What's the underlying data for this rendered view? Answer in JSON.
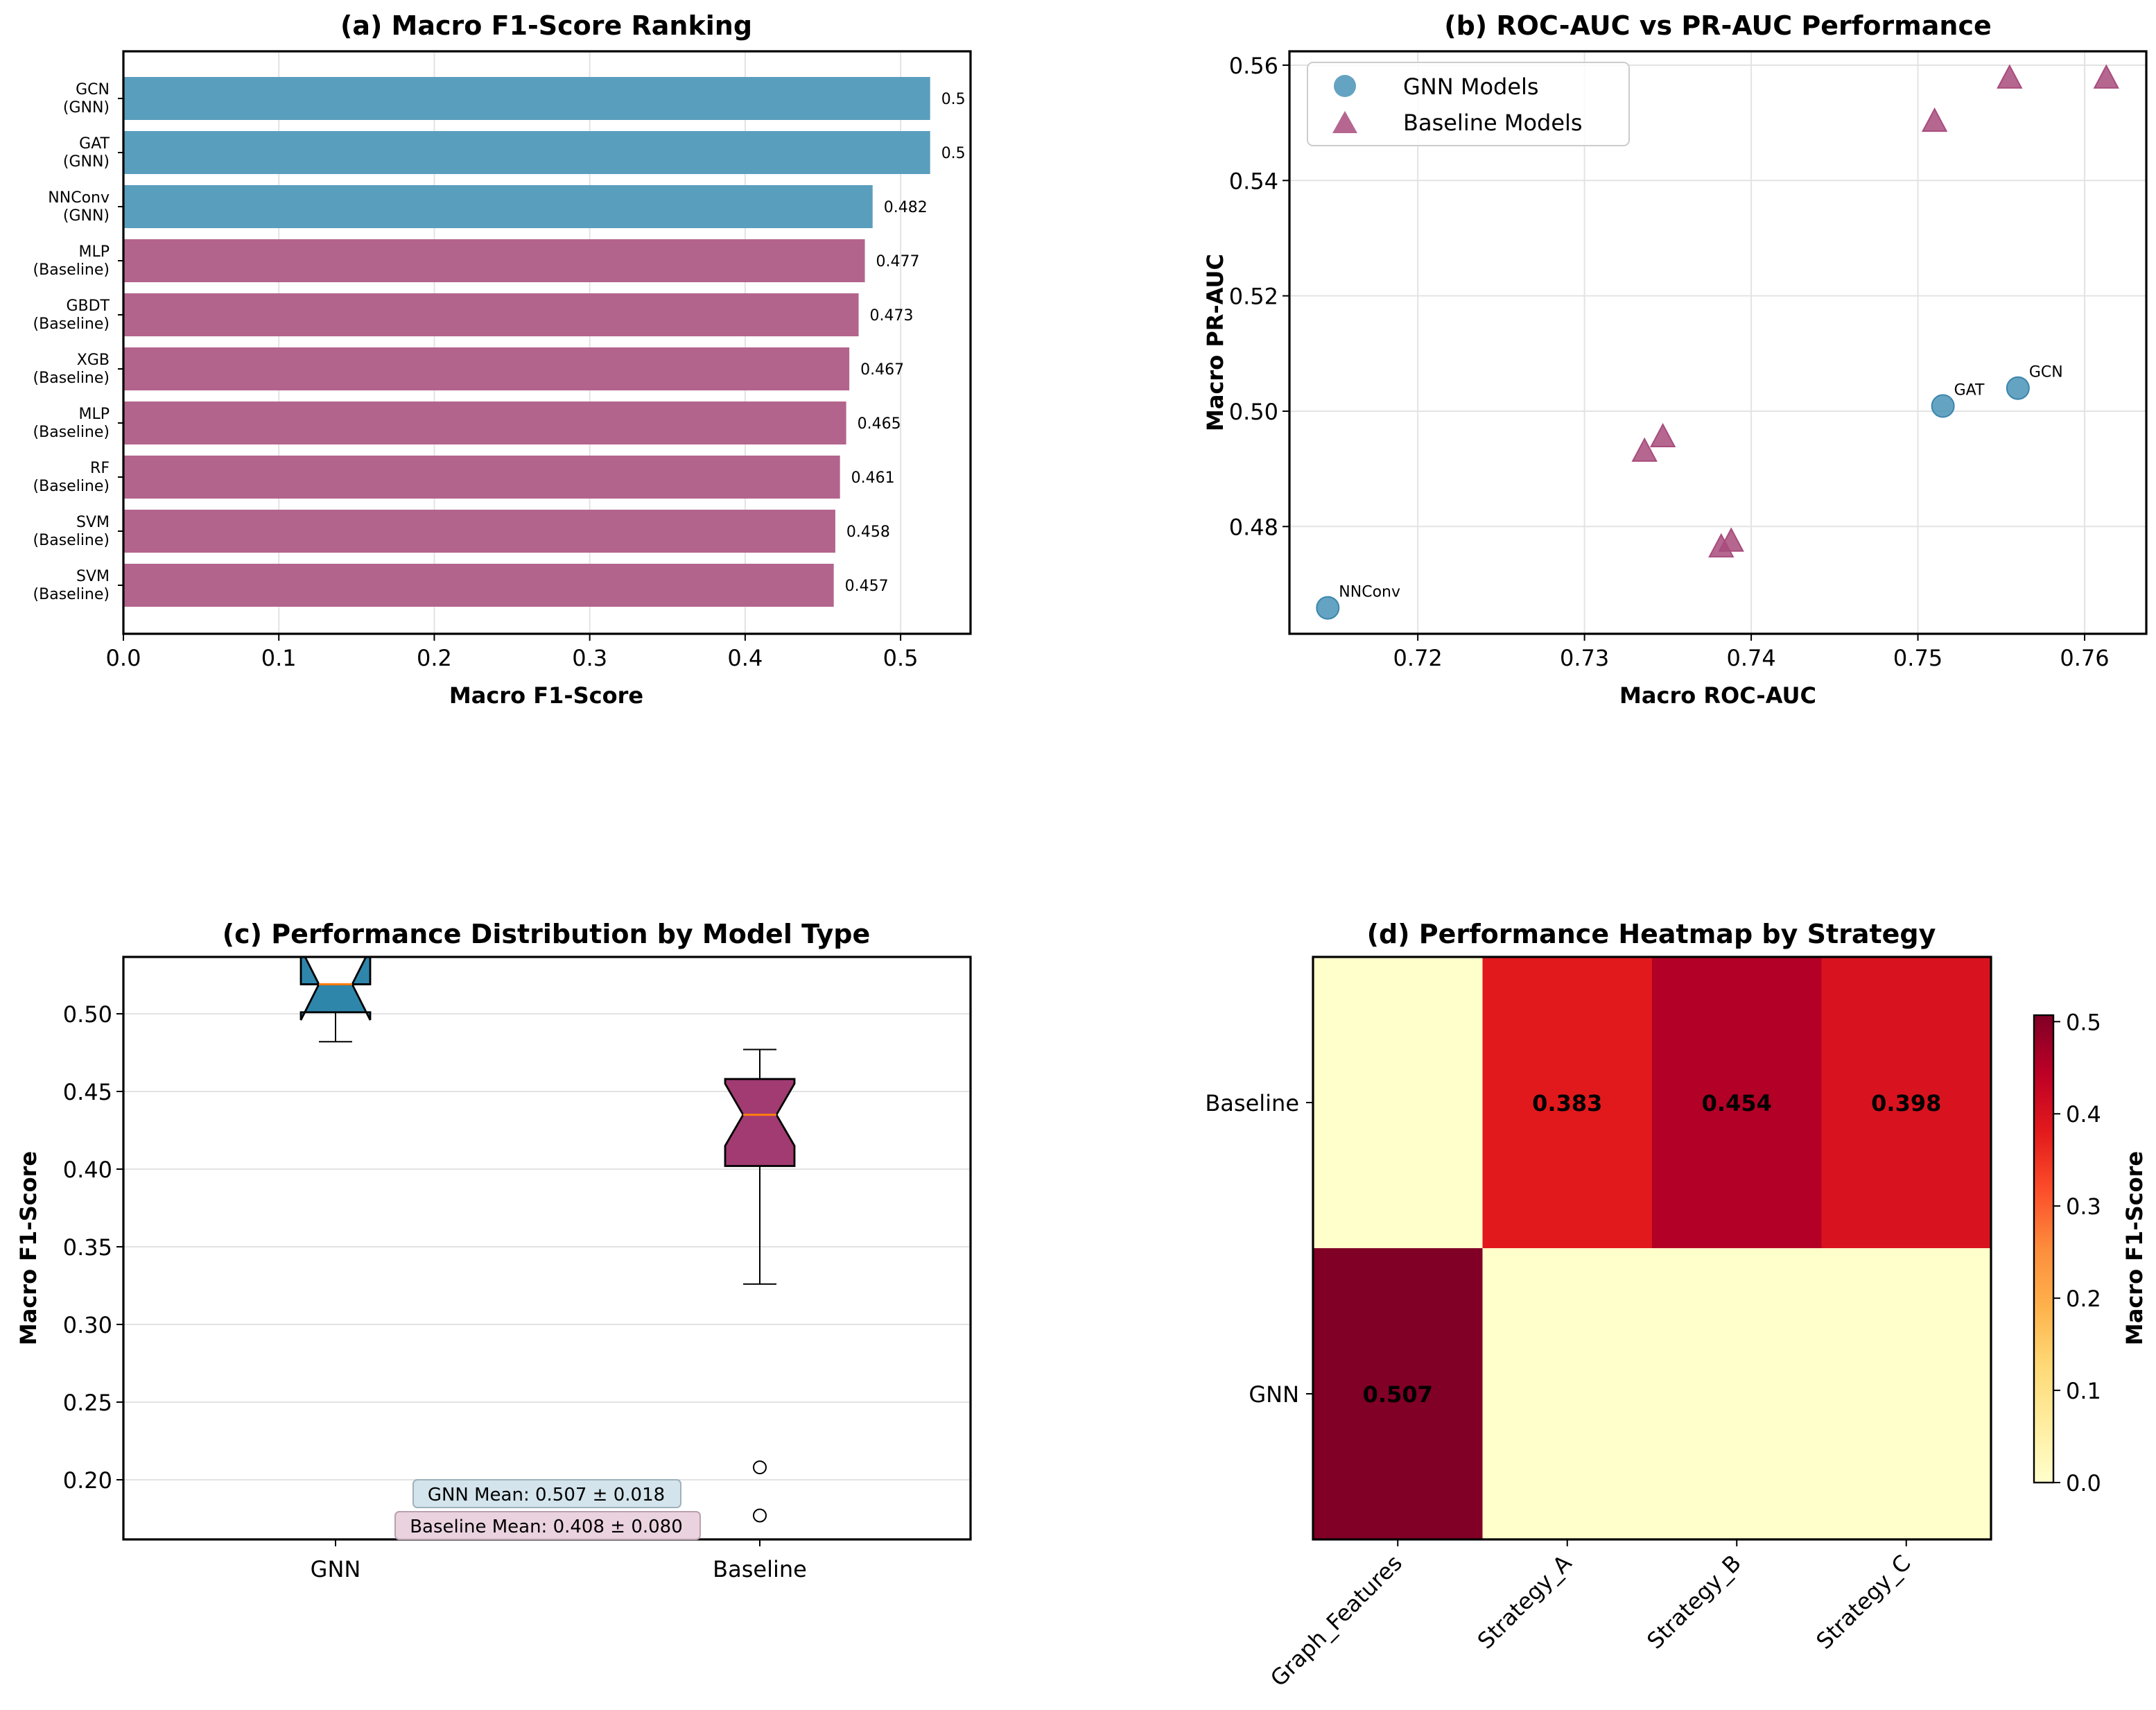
{
  "chart_data": [
    {
      "type": "bar",
      "orientation": "horizontal",
      "title": "(a) Macro F1-Score Ranking",
      "xlabel": "Macro F1-Score",
      "xlim": [
        0,
        0.545
      ],
      "xticks": [
        "0.0",
        "0.1",
        "0.2",
        "0.3",
        "0.4",
        "0.5"
      ],
      "grid": true,
      "bars": [
        {
          "name": "GCN",
          "group": "(GNN)",
          "value": 0.519,
          "label": "0.5"
        },
        {
          "name": "GAT",
          "group": "(GNN)",
          "value": 0.519,
          "label": "0.5"
        },
        {
          "name": "NNConv",
          "group": "(GNN)",
          "value": 0.482,
          "label": "0.482"
        },
        {
          "name": "MLP",
          "group": "(Baseline)",
          "value": 0.477,
          "label": "0.477"
        },
        {
          "name": "GBDT",
          "group": "(Baseline)",
          "value": 0.473,
          "label": "0.473"
        },
        {
          "name": "XGB",
          "group": "(Baseline)",
          "value": 0.467,
          "label": "0.467"
        },
        {
          "name": "MLP",
          "group": "(Baseline)",
          "value": 0.465,
          "label": "0.465"
        },
        {
          "name": "RF",
          "group": "(Baseline)",
          "value": 0.461,
          "label": "0.461"
        },
        {
          "name": "SVM",
          "group": "(Baseline)",
          "value": 0.458,
          "label": "0.458"
        },
        {
          "name": "SVM",
          "group": "(Baseline)",
          "value": 0.457,
          "label": "0.457"
        }
      ],
      "colors": {
        "(GNN)": "#5a9ebd",
        "(Baseline)": "#b3648c"
      }
    },
    {
      "type": "scatter",
      "title": "(b) ROC-AUC vs PR-AUC Performance",
      "xlabel": "Macro ROC-AUC",
      "ylabel": "Macro PR-AUC",
      "xlim": [
        0.7123,
        0.7637
      ],
      "ylim": [
        0.4614,
        0.5624
      ],
      "xticks": [
        0.72,
        0.73,
        0.74,
        0.75,
        0.76
      ],
      "yticks": [
        0.48,
        0.5,
        0.52,
        0.54,
        0.56
      ],
      "legend_position": "top-left",
      "grid": true,
      "series": [
        {
          "name": "GNN Models",
          "marker": "circle",
          "color": "#4a93b7",
          "points": [
            {
              "x": 0.7146,
              "y": 0.4659,
              "label": "NNConv"
            },
            {
              "x": 0.7515,
              "y": 0.5009,
              "label": "GAT"
            },
            {
              "x": 0.756,
              "y": 0.504,
              "label": "GCN"
            }
          ]
        },
        {
          "name": "Baseline Models",
          "marker": "triangle",
          "color": "#a84c7c",
          "points": [
            {
              "x": 0.7555,
              "y": 0.5575
            },
            {
              "x": 0.7613,
              "y": 0.5575
            },
            {
              "x": 0.751,
              "y": 0.55
            },
            {
              "x": 0.7336,
              "y": 0.4928
            },
            {
              "x": 0.7347,
              "y": 0.4953
            },
            {
              "x": 0.7382,
              "y": 0.4762
            },
            {
              "x": 0.7388,
              "y": 0.4772
            }
          ]
        }
      ]
    },
    {
      "type": "box",
      "title": "(c) Performance Distribution by Model Type",
      "ylabel": "Macro F1-Score",
      "ylim": [
        0.1616,
        0.5366
      ],
      "yticks": [
        "0.20",
        "0.25",
        "0.30",
        "0.35",
        "0.40",
        "0.45",
        "0.50"
      ],
      "grid": true,
      "boxes": [
        {
          "name": "GNN",
          "color": "#2e86ab",
          "q1": 0.501,
          "median": 0.519,
          "q3": 0.519,
          "whislo": 0.482,
          "whishi": 0.519,
          "notch": [
            0.496,
            0.542
          ],
          "fliers": []
        },
        {
          "name": "Baseline",
          "color": "#a23b72",
          "q1": 0.402,
          "median": 0.435,
          "q3": 0.458,
          "whislo": 0.326,
          "whishi": 0.477,
          "notch": [
            0.415,
            0.455
          ],
          "fliers": [
            0.208,
            0.177
          ]
        }
      ],
      "annotations": [
        {
          "text": "GNN Mean: 0.507 ± 0.018",
          "bg": "#d3e4ec"
        },
        {
          "text": "Baseline Mean: 0.408 ± 0.080",
          "bg": "#ead3df"
        }
      ]
    },
    {
      "type": "heatmap",
      "title": "(d) Performance Heatmap by Strategy",
      "rows": [
        "Baseline",
        "GNN"
      ],
      "columns": [
        "Graph_Features",
        "Strategy_A",
        "Strategy_B",
        "Strategy_C"
      ],
      "values": [
        [
          0,
          0.383,
          0.454,
          0.398
        ],
        [
          0.507,
          0,
          0,
          0
        ]
      ],
      "cell_labels": [
        [
          "",
          "0.383",
          "0.454",
          "0.398"
        ],
        [
          "0.507",
          "",
          "",
          ""
        ]
      ],
      "colormap": "YlOrRd",
      "vmin": 0,
      "vmax": 0.507,
      "colorbar_label": "Macro F1-Score",
      "colorbar_ticks": [
        "0.0",
        "0.1",
        "0.2",
        "0.3",
        "0.4",
        "0.5"
      ]
    }
  ]
}
